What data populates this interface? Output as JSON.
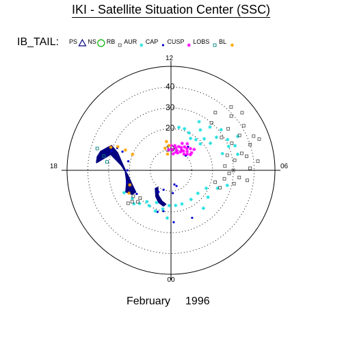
{
  "page": {
    "title": "IKI - Satellite Situation Center (SSC)",
    "month": "February",
    "year": "1996"
  },
  "chart_data": {
    "type": "scatter",
    "coordinate_system": "polar",
    "legend_title": "IB_TAIL:",
    "legend_placement": "top-left",
    "legend": [
      {
        "label": "PS",
        "marker": "triangle",
        "color": "#000080"
      },
      {
        "label": "NS",
        "marker": "circle",
        "color": "#00b000"
      },
      {
        "label": "RB",
        "marker": "square",
        "color": "#555555"
      },
      {
        "label": "AUR",
        "marker": "asterisk",
        "color": "#20e0e0"
      },
      {
        "label": "CAP",
        "marker": "dot",
        "color": "#0000cc"
      },
      {
        "label": "CUSP",
        "marker": "asterisk",
        "color": "#ff00ff"
      },
      {
        "label": "LOBS",
        "marker": "square",
        "color": "#008080"
      },
      {
        "label": "BL",
        "marker": "asterisk",
        "color": "#ffa500"
      }
    ],
    "angular_axis": {
      "labels": [
        "12",
        "18",
        "00",
        "06"
      ],
      "unit": "hours MLT",
      "zero_at": "bottom"
    },
    "radial_axis": {
      "ticks": [
        "10",
        "20",
        "30",
        "40"
      ],
      "range": [
        0,
        50
      ],
      "dotted_circles": true
    },
    "series": [
      {
        "name": "PS",
        "color": "#000080",
        "style": "band",
        "points": [
          {
            "mlt": 17.6,
            "r": 36
          },
          {
            "mlt": 17.3,
            "r": 36
          },
          {
            "mlt": 17.0,
            "r": 35
          },
          {
            "mlt": 16.5,
            "r": 31
          },
          {
            "mlt": 16.8,
            "r": 27
          },
          {
            "mlt": 17.4,
            "r": 24
          },
          {
            "mlt": 18.0,
            "r": 22
          },
          {
            "mlt": 19.0,
            "r": 22
          },
          {
            "mlt": 19.7,
            "r": 24
          },
          {
            "mlt": 20.1,
            "r": 22
          },
          {
            "mlt": 20.1,
            "r": 20
          },
          {
            "mlt": 19.3,
            "r": 20
          },
          {
            "mlt": 18.4,
            "r": 21
          },
          {
            "mlt": 17.6,
            "r": 24
          },
          {
            "mlt": 17.0,
            "r": 30
          }
        ]
      },
      {
        "name": "PS",
        "color": "#000080",
        "style": "band",
        "points": [
          {
            "mlt": 21.5,
            "r": 10.5
          },
          {
            "mlt": 22.2,
            "r": 13.5
          },
          {
            "mlt": 22.9,
            "r": 15.5
          },
          {
            "mlt": 23.4,
            "r": 16.5
          },
          {
            "mlt": 23.2,
            "r": 17.5
          },
          {
            "mlt": 22.6,
            "r": 16.5
          },
          {
            "mlt": 22.0,
            "r": 14.5
          },
          {
            "mlt": 21.3,
            "r": 11.5
          }
        ]
      },
      {
        "name": "CAP",
        "color": "#0000cc",
        "style": "dots",
        "points": [
          {
            "mlt": 16.8,
            "r": 30
          },
          {
            "mlt": 16.5,
            "r": 28
          },
          {
            "mlt": 16.6,
            "r": 25
          },
          {
            "mlt": 17.2,
            "r": 21
          },
          {
            "mlt": 18.0,
            "r": 21
          },
          {
            "mlt": 19.0,
            "r": 22
          },
          {
            "mlt": 20.3,
            "r": 20
          },
          {
            "mlt": 22.8,
            "r": 21
          },
          {
            "mlt": 23.3,
            "r": 20
          },
          {
            "mlt": 0.2,
            "r": 25
          },
          {
            "mlt": 1.6,
            "r": 25
          },
          {
            "mlt": 0.3,
            "r": 11
          },
          {
            "mlt": 1.3,
            "r": 8
          },
          {
            "mlt": 22.6,
            "r": 10
          },
          {
            "mlt": 22.0,
            "r": 12
          },
          {
            "mlt": 0.9,
            "r": 7
          },
          {
            "mlt": 9.6,
            "r": 14
          },
          {
            "mlt": 9.0,
            "r": 10
          },
          {
            "mlt": 10.2,
            "r": 11
          }
        ]
      },
      {
        "name": "AUR",
        "color": "#20e0e0",
        "style": "asterisks",
        "points": [
          {
            "mlt": 19.7,
            "r": 25
          },
          {
            "mlt": 20.4,
            "r": 23
          },
          {
            "mlt": 21.1,
            "r": 22
          },
          {
            "mlt": 21.9,
            "r": 20
          },
          {
            "mlt": 22.6,
            "r": 21
          },
          {
            "mlt": 23.2,
            "r": 19
          },
          {
            "mlt": 23.8,
            "r": 17
          },
          {
            "mlt": 0.5,
            "r": 17
          },
          {
            "mlt": 1.2,
            "r": 17
          },
          {
            "mlt": 2.3,
            "r": 17
          },
          {
            "mlt": 3.3,
            "r": 17
          },
          {
            "mlt": 4.2,
            "r": 19
          },
          {
            "mlt": 4.6,
            "r": 24
          },
          {
            "mlt": 5.0,
            "r": 28
          },
          {
            "mlt": 20.8,
            "r": 24
          },
          {
            "mlt": 21.5,
            "r": 19
          },
          {
            "mlt": 22.4,
            "r": 17
          },
          {
            "mlt": 23.7,
            "r": 23
          },
          {
            "mlt": 2.7,
            "r": 24
          },
          {
            "mlt": 3.6,
            "r": 22
          },
          {
            "mlt": 7.4,
            "r": 33
          },
          {
            "mlt": 7.9,
            "r": 31
          },
          {
            "mlt": 8.4,
            "r": 27
          },
          {
            "mlt": 8.9,
            "r": 22
          },
          {
            "mlt": 9.4,
            "r": 19
          },
          {
            "mlt": 9.9,
            "r": 18
          },
          {
            "mlt": 10.3,
            "r": 20
          },
          {
            "mlt": 10.8,
            "r": 21
          },
          {
            "mlt": 11.3,
            "r": 21
          },
          {
            "mlt": 8.3,
            "r": 23
          },
          {
            "mlt": 8.8,
            "r": 19
          },
          {
            "mlt": 9.6,
            "r": 24
          },
          {
            "mlt": 10.0,
            "r": 27
          },
          {
            "mlt": 9.2,
            "r": 28
          },
          {
            "mlt": 8.6,
            "r": 31
          },
          {
            "mlt": 7.8,
            "r": 36
          },
          {
            "mlt": 7.5,
            "r": 30
          },
          {
            "mlt": 7.2,
            "r": 26
          },
          {
            "mlt": 6.9,
            "r": 33
          }
        ]
      },
      {
        "name": "CUSP",
        "color": "#ff00ff",
        "style": "asterisks",
        "points": [
          {
            "mlt": 8.8,
            "r": 15
          },
          {
            "mlt": 9.2,
            "r": 14
          },
          {
            "mlt": 9.6,
            "r": 13
          },
          {
            "mlt": 10.0,
            "r": 13
          },
          {
            "mlt": 10.4,
            "r": 12
          },
          {
            "mlt": 10.8,
            "r": 12
          },
          {
            "mlt": 11.2,
            "r": 11
          },
          {
            "mlt": 11.8,
            "r": 10
          },
          {
            "mlt": 12.4,
            "r": 10
          },
          {
            "mlt": 8.6,
            "r": 12
          },
          {
            "mlt": 9.0,
            "r": 11
          },
          {
            "mlt": 9.4,
            "r": 10
          },
          {
            "mlt": 9.8,
            "r": 11
          },
          {
            "mlt": 10.2,
            "r": 10
          },
          {
            "mlt": 10.6,
            "r": 9
          },
          {
            "mlt": 11.0,
            "r": 9
          },
          {
            "mlt": 11.5,
            "r": 8
          },
          {
            "mlt": 8.7,
            "r": 13
          },
          {
            "mlt": 9.3,
            "r": 12
          },
          {
            "mlt": 10.1,
            "r": 11
          },
          {
            "mlt": 10.9,
            "r": 10
          },
          {
            "mlt": 11.4,
            "r": 12
          },
          {
            "mlt": 12.0,
            "r": 12
          },
          {
            "mlt": 9.9,
            "r": 15
          },
          {
            "mlt": 10.5,
            "r": 14
          }
        ]
      },
      {
        "name": "LOBS",
        "color": "#008080",
        "style": "squares",
        "points": [
          {
            "mlt": 16.9,
            "r": 37
          },
          {
            "mlt": 17.2,
            "r": 33
          },
          {
            "mlt": 17.5,
            "r": 31
          }
        ]
      },
      {
        "name": "RB",
        "color": "#555555",
        "style": "squares",
        "points": [
          {
            "mlt": 4.7,
            "r": 25
          },
          {
            "mlt": 5.0,
            "r": 22
          },
          {
            "mlt": 5.4,
            "r": 26
          },
          {
            "mlt": 5.6,
            "r": 33
          },
          {
            "mlt": 6.0,
            "r": 30
          },
          {
            "mlt": 6.3,
            "r": 26
          },
          {
            "mlt": 6.6,
            "r": 31
          },
          {
            "mlt": 6.9,
            "r": 35
          },
          {
            "mlt": 7.2,
            "r": 40
          },
          {
            "mlt": 7.5,
            "r": 43
          },
          {
            "mlt": 7.8,
            "r": 37
          },
          {
            "mlt": 8.1,
            "r": 41
          },
          {
            "mlt": 8.4,
            "r": 34
          },
          {
            "mlt": 8.8,
            "r": 39
          },
          {
            "mlt": 9.1,
            "r": 42
          },
          {
            "mlt": 9.5,
            "r": 35
          },
          {
            "mlt": 6.1,
            "r": 38
          },
          {
            "mlt": 5.8,
            "r": 28
          },
          {
            "mlt": 6.7,
            "r": 37
          },
          {
            "mlt": 7.0,
            "r": 28
          },
          {
            "mlt": 7.6,
            "r": 32
          },
          {
            "mlt": 8.2,
            "r": 29
          },
          {
            "mlt": 8.6,
            "r": 44
          },
          {
            "mlt": 9.3,
            "r": 30
          },
          {
            "mlt": 6.4,
            "r": 42
          },
          {
            "mlt": 7.3,
            "r": 45
          },
          {
            "mlt": 5.2,
            "r": 31
          },
          {
            "mlt": 5.5,
            "r": 37
          },
          {
            "mlt": 20.3,
            "r": 22
          },
          {
            "mlt": 20.6,
            "r": 24
          },
          {
            "mlt": 20.9,
            "r": 22
          },
          {
            "mlt": 20.5,
            "r": 26
          },
          {
            "mlt": 20.8,
            "r": 20
          }
        ]
      },
      {
        "name": "BL",
        "color": "#ffa500",
        "style": "asterisks",
        "points": [
          {
            "mlt": 16.6,
            "r": 31
          },
          {
            "mlt": 16.4,
            "r": 28
          },
          {
            "mlt": 16.4,
            "r": 24
          },
          {
            "mlt": 16.5,
            "r": 20
          },
          {
            "mlt": 12.8,
            "r": 8
          },
          {
            "mlt": 13.0,
            "r": 11
          },
          {
            "mlt": 12.6,
            "r": 14
          },
          {
            "mlt": 12.3,
            "r": 12
          },
          {
            "mlt": 19.3,
            "r": 21
          },
          {
            "mlt": 19.9,
            "r": 23
          }
        ]
      }
    ]
  }
}
